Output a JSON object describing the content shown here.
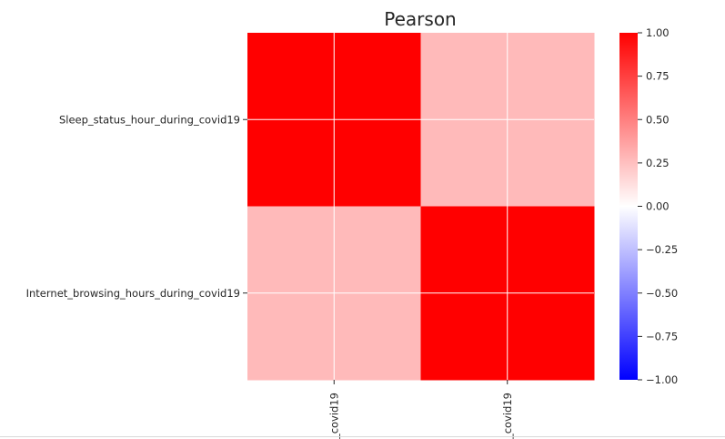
{
  "chart_data": {
    "type": "heatmap",
    "title": "Pearson",
    "rows": [
      "Sleep_status_hour_during_covid19",
      "Internet_browsing_hours_during_covid19"
    ],
    "columns": [
      "_covid19",
      "_covid19"
    ],
    "values": [
      [
        1.0,
        0.27
      ],
      [
        0.27,
        1.0
      ]
    ],
    "colorbar": {
      "min": -1.0,
      "max": 1.0,
      "ticks": [
        "1.00",
        "0.75",
        "0.50",
        "0.25",
        "0.00",
        "−0.25",
        "−0.50",
        "−0.75",
        "−1.00"
      ],
      "tick_values": [
        1.0,
        0.75,
        0.5,
        0.25,
        0.0,
        -0.25,
        -0.5,
        -0.75,
        -1.0
      ],
      "colormap": "bwr",
      "colors": {
        "negative": "#0000ff",
        "zero": "#ffffff",
        "positive": "#ff0000"
      }
    },
    "grid": true,
    "grid_color": "#ffffff"
  }
}
